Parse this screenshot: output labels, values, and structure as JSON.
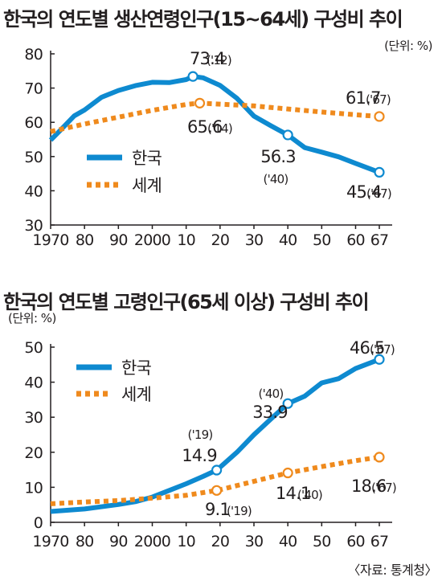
{
  "charts": [
    {
      "title": "한국의 연도별 생산연령인구(15~64세) 구성비 추이",
      "unit": "(단위: %)"
    },
    {
      "title": "한국의 연도별 고령인구(65세 이상) 구성비 추이",
      "unit": "(단위: %)"
    }
  ],
  "source": "〈자료: 통계청〉",
  "colors": {
    "korea": "#0e8ad0",
    "world": "#ef8a1d",
    "axis": "#231f20"
  },
  "chart_data": [
    {
      "type": "line",
      "title": "한국의 연도별 생산연령인구(15~64세) 구성비 추이",
      "xlabel": "",
      "ylabel": "",
      "ylim": [
        30,
        80
      ],
      "yticks": [
        30,
        40,
        50,
        60,
        70,
        80
      ],
      "xticks": [
        1970,
        1980,
        1990,
        2000,
        2010,
        2020,
        2030,
        2040,
        2050,
        2060,
        2067
      ],
      "xtick_labels": [
        "1970",
        "80",
        "90",
        "2000",
        "10",
        "20",
        "30",
        "40",
        "50",
        "60",
        "67"
      ],
      "xlim": [
        1970,
        2067
      ],
      "legend": "middle-left",
      "series": [
        {
          "name": "한국",
          "color": "#0e8ad0",
          "style": "solid",
          "x": [
            1970,
            1973,
            1977,
            1980,
            1985,
            1990,
            1995,
            2000,
            2005,
            2010,
            2012,
            2015,
            2020,
            2025,
            2030,
            2035,
            2040,
            2045,
            2050,
            2055,
            2060,
            2067
          ],
          "y": [
            54.8,
            57.8,
            61.9,
            63.6,
            67.3,
            69.3,
            70.7,
            71.7,
            71.6,
            72.5,
            73.4,
            73.0,
            70.8,
            67.0,
            61.8,
            59.0,
            56.3,
            52.6,
            51.3,
            49.9,
            48.0,
            45.4
          ]
        },
        {
          "name": "세계",
          "color": "#ef8a1d",
          "style": "dotted",
          "x": [
            1970,
            1980,
            1990,
            2000,
            2010,
            2014,
            2020,
            2030,
            2040,
            2050,
            2060,
            2067
          ],
          "y": [
            57.3,
            59.5,
            61.5,
            63.5,
            65.2,
            65.6,
            65.3,
            64.8,
            63.9,
            63.0,
            62.2,
            61.7
          ]
        }
      ],
      "annotations": [
        {
          "value": "73.4",
          "year": "('12)",
          "series": "한국",
          "x": 2012,
          "y": 73.4
        },
        {
          "value": "65.6",
          "year": "('14)",
          "series": "세계",
          "x": 2014,
          "y": 65.6
        },
        {
          "value": "56.3",
          "year": "('40)",
          "series": "한국",
          "x": 2040,
          "y": 56.3
        },
        {
          "value": "61.7",
          "year": "('67)",
          "series": "세계",
          "x": 2067,
          "y": 61.7
        },
        {
          "value": "45.4",
          "year": "('67)",
          "series": "한국",
          "x": 2067,
          "y": 45.4
        }
      ]
    },
    {
      "type": "line",
      "title": "한국의 연도별 고령인구(65세 이상) 구성비 추이",
      "xlabel": "",
      "ylabel": "",
      "ylim": [
        0,
        50
      ],
      "yticks": [
        0,
        10,
        20,
        30,
        40,
        50
      ],
      "xticks": [
        1970,
        1980,
        1990,
        2000,
        2010,
        2020,
        2030,
        2040,
        2050,
        2060,
        2067
      ],
      "xtick_labels": [
        "1970",
        "80",
        "90",
        "2000",
        "10",
        "20",
        "30",
        "40",
        "50",
        "60",
        "67"
      ],
      "xlim": [
        1970,
        2067
      ],
      "legend": "top-left",
      "series": [
        {
          "name": "한국",
          "color": "#0e8ad0",
          "style": "solid",
          "x": [
            1970,
            1980,
            1990,
            1995,
            2000,
            2005,
            2010,
            2015,
            2019,
            2020,
            2025,
            2030,
            2035,
            2040,
            2045,
            2050,
            2055,
            2060,
            2067
          ],
          "y": [
            3.1,
            3.8,
            5.1,
            5.9,
            7.2,
            9.1,
            11.0,
            13.1,
            14.9,
            15.7,
            20.0,
            25.0,
            29.5,
            33.9,
            36.0,
            39.8,
            41.0,
            43.9,
            46.5
          ]
        },
        {
          "name": "세계",
          "color": "#ef8a1d",
          "style": "dotted",
          "x": [
            1970,
            1980,
            1990,
            2000,
            2010,
            2019,
            2020,
            2030,
            2040,
            2050,
            2060,
            2067
          ],
          "y": [
            5.3,
            5.8,
            6.2,
            6.9,
            7.7,
            9.1,
            9.3,
            11.7,
            14.1,
            15.9,
            17.6,
            18.6
          ]
        }
      ],
      "annotations": [
        {
          "value": "14.9",
          "year": "('19)",
          "series": "한국",
          "x": 2019,
          "y": 14.9
        },
        {
          "value": "9.1",
          "year": "('19)",
          "series": "세계",
          "x": 2019,
          "y": 9.1
        },
        {
          "value": "33.9",
          "year": "('40)",
          "series": "한국",
          "x": 2040,
          "y": 33.9
        },
        {
          "value": "14.1",
          "year": "('40)",
          "series": "세계",
          "x": 2040,
          "y": 14.1
        },
        {
          "value": "46.5",
          "year": "('67)",
          "series": "한국",
          "x": 2067,
          "y": 46.5
        },
        {
          "value": "18.6",
          "year": "('67)",
          "series": "세계",
          "x": 2067,
          "y": 18.6
        }
      ]
    }
  ]
}
